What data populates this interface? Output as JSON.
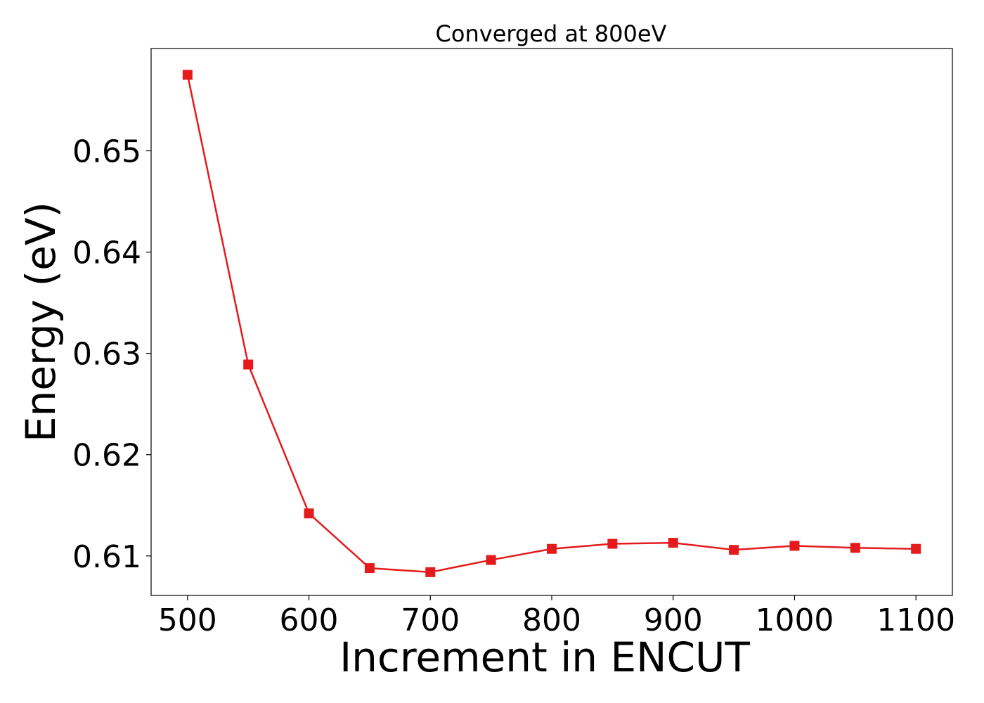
{
  "chart_data": {
    "type": "line",
    "title": "Converged at 800eV",
    "xlabel": "Increment in ENCUT",
    "ylabel": "Energy (eV)",
    "xlim": [
      470,
      1130
    ],
    "ylim": [
      0.6061,
      0.6601
    ],
    "xticks": [
      500,
      600,
      700,
      800,
      900,
      1000,
      1100
    ],
    "xtick_labels": [
      "500",
      "600",
      "700",
      "800",
      "900",
      "1000",
      "1100"
    ],
    "yticks": [
      0.61,
      0.62,
      0.63,
      0.64,
      0.65
    ],
    "ytick_labels": [
      "0.61",
      "0.62",
      "0.63",
      "0.64",
      "0.65"
    ],
    "grid": false,
    "series": [
      {
        "color": "#e41a1c",
        "marker": "square",
        "x": [
          500,
          550,
          600,
          650,
          700,
          750,
          800,
          850,
          900,
          950,
          1000,
          1050,
          1100
        ],
        "y": [
          0.6575,
          0.6289,
          0.6142,
          0.6088,
          0.6084,
          0.6096,
          0.6107,
          0.6112,
          0.6113,
          0.6106,
          0.611,
          0.6108,
          0.6107
        ]
      }
    ]
  }
}
